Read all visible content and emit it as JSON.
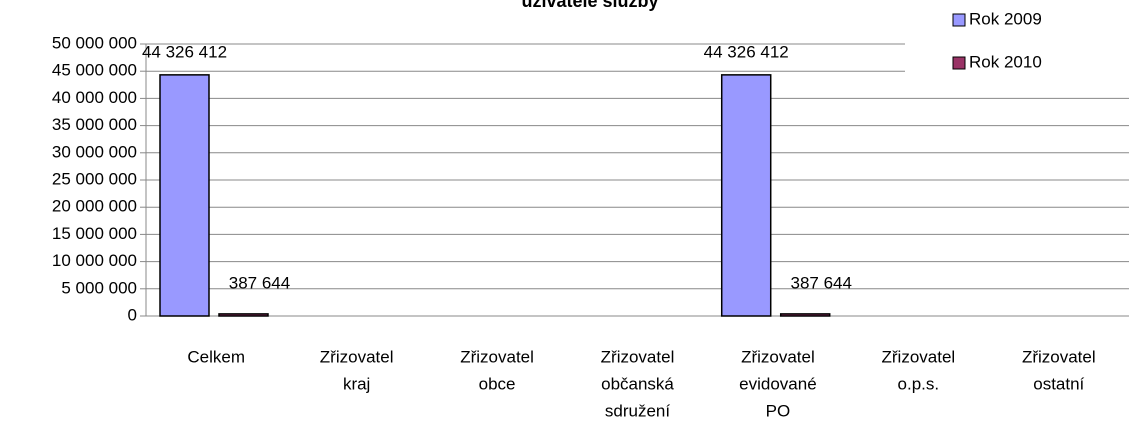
{
  "chart_data": {
    "type": "bar",
    "title": "uživatele služby",
    "categories": [
      [
        "Celkem"
      ],
      [
        "Zřizovatel",
        "kraj"
      ],
      [
        "Zřizovatel",
        "obce"
      ],
      [
        "Zřizovatel",
        "občanská",
        "sdružení"
      ],
      [
        "Zřizovatel",
        "evidované",
        "PO"
      ],
      [
        "Zřizovatel",
        "o.p.s."
      ],
      [
        "Zřizovatel",
        "ostatní"
      ]
    ],
    "series": [
      {
        "name": "Rok 2009",
        "color": "#9999ff",
        "values": [
          44326412,
          null,
          null,
          null,
          44326412,
          null,
          null
        ],
        "value_labels": [
          "44 326 412",
          null,
          null,
          null,
          "44 326 412",
          null,
          null
        ]
      },
      {
        "name": "Rok 2010",
        "color": "#993366",
        "values": [
          387644,
          null,
          null,
          null,
          387644,
          null,
          null
        ],
        "value_labels": [
          "387 644",
          null,
          null,
          null,
          "387 644",
          null,
          null
        ]
      }
    ],
    "ylim": [
      0,
      50000000
    ],
    "yticks": [
      0,
      {
        "value": 5000000,
        "label": "5 000 000"
      },
      {
        "value": 10000000,
        "label": "10 000 000"
      },
      {
        "value": 15000000,
        "label": "15 000 000"
      },
      {
        "value": 20000000,
        "label": "20 000 000"
      },
      {
        "value": 25000000,
        "label": "25 000 000"
      },
      {
        "value": 30000000,
        "label": "30 000 000"
      },
      {
        "value": 35000000,
        "label": "35 000 000"
      },
      {
        "value": 40000000,
        "label": "40 000 000"
      },
      {
        "value": 45000000,
        "label": "45 000 000"
      },
      {
        "value": 50000000,
        "label": "50 000 000"
      }
    ],
    "grid": true,
    "legend": "top-right"
  }
}
